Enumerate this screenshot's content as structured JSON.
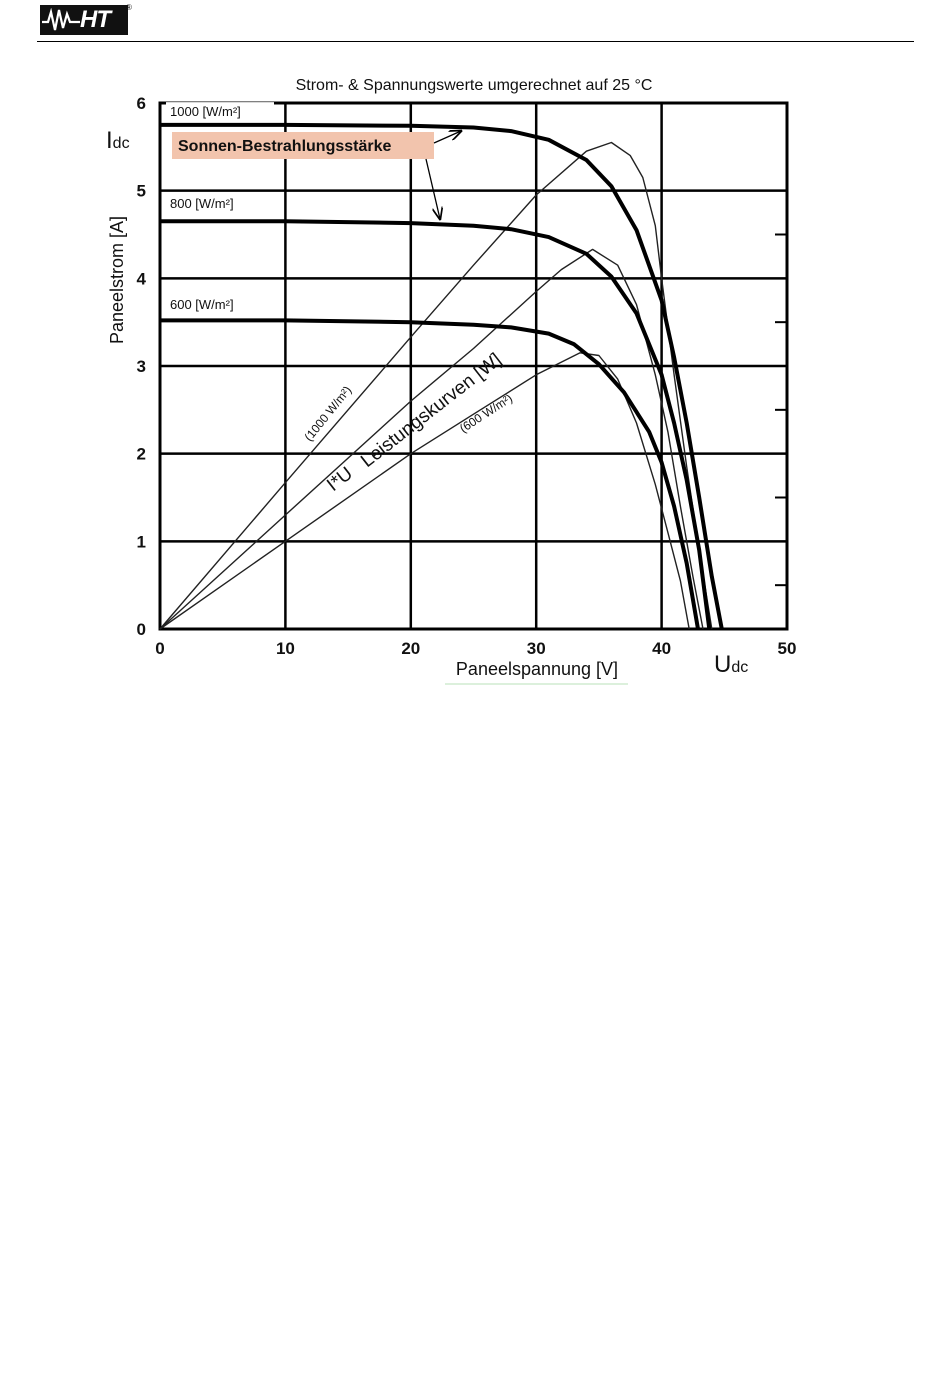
{
  "header": {
    "logo_text": "HT",
    "logo_reg": "®"
  },
  "chart_data": {
    "type": "line",
    "title": "Strom- & Spannungswerte umgerechnet auf 25 °C",
    "xlabel": "Paneelspannung [V]",
    "ylabel": "Paneelstrom [A]",
    "x_axis_symbol": "Udc",
    "y_axis_symbol": "Idc",
    "xlim": [
      0,
      50
    ],
    "ylim": [
      0,
      6
    ],
    "xticks": [
      "0",
      "10",
      "20",
      "30",
      "40",
      "50"
    ],
    "yticks": [
      "0",
      "1",
      "2",
      "3",
      "4",
      "5",
      "6"
    ],
    "grid": true,
    "irradiance_label": "Sonnen-Bestrahlungsstärke",
    "power_label": "Leistungskurven [W]",
    "power_symbol": "I*U",
    "iv_series": [
      {
        "name": "1000 [W/m²]",
        "points": [
          [
            0,
            5.75
          ],
          [
            10,
            5.75
          ],
          [
            20,
            5.74
          ],
          [
            25,
            5.72
          ],
          [
            28,
            5.68
          ],
          [
            31,
            5.58
          ],
          [
            34,
            5.35
          ],
          [
            36,
            5.05
          ],
          [
            38,
            4.55
          ],
          [
            40,
            3.75
          ],
          [
            41,
            3.1
          ],
          [
            42,
            2.35
          ],
          [
            43,
            1.5
          ],
          [
            44,
            0.6
          ],
          [
            44.8,
            0
          ]
        ]
      },
      {
        "name": "800 [W/m²]",
        "points": [
          [
            0,
            4.65
          ],
          [
            10,
            4.65
          ],
          [
            20,
            4.63
          ],
          [
            25,
            4.6
          ],
          [
            28,
            4.56
          ],
          [
            31,
            4.47
          ],
          [
            34,
            4.28
          ],
          [
            36,
            4.02
          ],
          [
            38,
            3.6
          ],
          [
            40,
            2.9
          ],
          [
            41,
            2.35
          ],
          [
            42,
            1.7
          ],
          [
            43,
            0.9
          ],
          [
            43.8,
            0
          ]
        ]
      },
      {
        "name": "600 [W/m²]",
        "points": [
          [
            0,
            3.52
          ],
          [
            10,
            3.52
          ],
          [
            20,
            3.5
          ],
          [
            25,
            3.47
          ],
          [
            28,
            3.44
          ],
          [
            31,
            3.37
          ],
          [
            33,
            3.25
          ],
          [
            35,
            3.02
          ],
          [
            37,
            2.7
          ],
          [
            39,
            2.25
          ],
          [
            40,
            1.9
          ],
          [
            41,
            1.4
          ],
          [
            42,
            0.75
          ],
          [
            42.9,
            0
          ]
        ]
      }
    ],
    "power_series": [
      {
        "name": "(1000 W/m²)",
        "points": [
          [
            0,
            0
          ],
          [
            10,
            1.67
          ],
          [
            20,
            3.33
          ],
          [
            25,
            4.15
          ],
          [
            30,
            4.95
          ],
          [
            34,
            5.45
          ],
          [
            36,
            5.55
          ],
          [
            37.5,
            5.4
          ],
          [
            38.5,
            5.15
          ],
          [
            39.5,
            4.6
          ],
          [
            40,
            4.0
          ],
          [
            41,
            2.9
          ],
          [
            42,
            1.85
          ],
          [
            43,
            0.9
          ],
          [
            44,
            0
          ]
        ]
      },
      {
        "name": "",
        "points": [
          [
            0,
            0
          ],
          [
            10,
            1.3
          ],
          [
            20,
            2.6
          ],
          [
            25,
            3.2
          ],
          [
            30,
            3.85
          ],
          [
            32,
            4.1
          ],
          [
            34.5,
            4.33
          ],
          [
            36.5,
            4.15
          ],
          [
            38,
            3.7
          ],
          [
            39.5,
            2.9
          ],
          [
            40.5,
            2.25
          ],
          [
            41.5,
            1.4
          ],
          [
            42.5,
            0.6
          ],
          [
            43.3,
            0
          ]
        ]
      },
      {
        "name": "(600 W/m²)",
        "points": [
          [
            0,
            0
          ],
          [
            10,
            1.0
          ],
          [
            20,
            2.0
          ],
          [
            25,
            2.45
          ],
          [
            30,
            2.9
          ],
          [
            33.5,
            3.15
          ],
          [
            35,
            3.12
          ],
          [
            36.5,
            2.85
          ],
          [
            38,
            2.35
          ],
          [
            39.5,
            1.65
          ],
          [
            40.5,
            1.1
          ],
          [
            41.5,
            0.55
          ],
          [
            42.2,
            0
          ]
        ]
      }
    ]
  }
}
